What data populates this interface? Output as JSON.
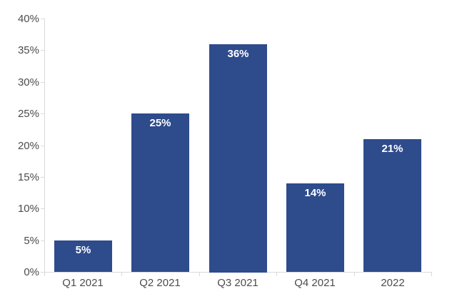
{
  "chart_data": {
    "type": "bar",
    "categories": [
      "Q1 2021",
      "Q2 2021",
      "Q3 2021",
      "Q4 2021",
      "2022"
    ],
    "values": [
      5,
      25,
      36,
      14,
      21
    ],
    "value_labels": [
      "5%",
      "25%",
      "36%",
      "14%",
      "21%"
    ],
    "y_ticks": [
      0,
      5,
      10,
      15,
      20,
      25,
      30,
      35,
      40
    ],
    "y_tick_labels": [
      "0%",
      "5%",
      "10%",
      "15%",
      "20%",
      "25%",
      "30%",
      "35%",
      "40%"
    ],
    "ylim": [
      0,
      40
    ],
    "xlabel": "",
    "ylabel": "",
    "grid": "off",
    "legend": "none",
    "colors": {
      "bar": "#2E4B8C",
      "axis_line": "#DADADA",
      "tick_label": "#4C4C4C",
      "value_label": "#FFFFFF",
      "background": "#FFFFFF"
    }
  }
}
